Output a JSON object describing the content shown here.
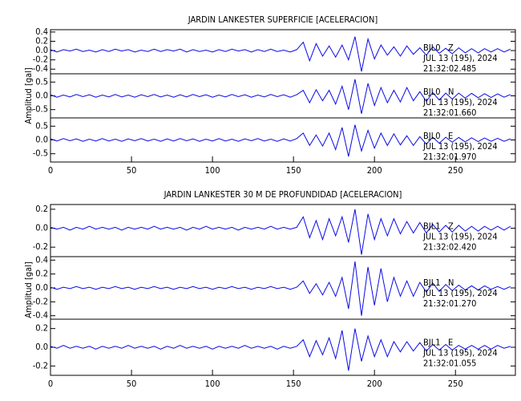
{
  "chart_data": [
    {
      "type": "line",
      "title": "JARDIN LANKESTER SUPERFICIE [ACELERACION]",
      "ylabel": "Amplitud [gal]",
      "xlim": [
        0,
        287
      ],
      "xticks": [
        0,
        50,
        100,
        150,
        200,
        250
      ],
      "x": [
        0,
        4,
        8,
        12,
        16,
        20,
        24,
        28,
        32,
        36,
        40,
        44,
        48,
        52,
        56,
        60,
        64,
        68,
        72,
        76,
        80,
        84,
        88,
        92,
        96,
        100,
        104,
        108,
        112,
        116,
        120,
        124,
        128,
        132,
        136,
        140,
        144,
        148,
        152,
        156,
        160,
        164,
        168,
        172,
        176,
        180,
        184,
        188,
        192,
        196,
        200,
        204,
        208,
        212,
        216,
        220,
        224,
        228,
        232,
        236,
        240,
        244,
        248,
        252,
        256,
        260,
        264,
        268,
        272,
        276,
        280,
        284
      ],
      "series": [
        {
          "name": "BJL0   Z",
          "date": "JUL 13 (195), 2024",
          "time": "21:32:02.485",
          "color": "#0a0ae6",
          "ylim": [
            -0.5,
            0.45
          ],
          "yticks": [
            0.4,
            0.2,
            {
              "value": 0,
              "label": "0.0"
            },
            -0.2,
            -0.4
          ],
          "values": [
            0.02,
            -0.03,
            0.02,
            -0.01,
            0.03,
            -0.02,
            0.01,
            -0.03,
            0.02,
            -0.02,
            0.03,
            -0.01,
            0.02,
            -0.03,
            0.01,
            -0.02,
            0.03,
            -0.02,
            0.02,
            -0.01,
            0.03,
            -0.03,
            0.02,
            -0.02,
            0.01,
            -0.03,
            0.02,
            -0.02,
            0.03,
            -0.01,
            0.02,
            -0.03,
            0.02,
            -0.02,
            0.03,
            -0.02,
            0.01,
            -0.03,
            0.02,
            0.18,
            -0.22,
            0.15,
            -0.12,
            0.1,
            -0.14,
            0.12,
            -0.2,
            0.3,
            -0.45,
            0.25,
            -0.18,
            0.12,
            -0.1,
            0.08,
            -0.12,
            0.1,
            -0.08,
            0.06,
            -0.1,
            0.08,
            -0.06,
            0.05,
            -0.07,
            0.06,
            -0.05,
            0.04,
            -0.05,
            0.04,
            -0.03,
            0.04,
            -0.03,
            0.03
          ]
        },
        {
          "name": "BJL0   N",
          "date": "JUL 13 (195), 2024",
          "time": "21:32:01.660",
          "color": "#0a0ae6",
          "ylim": [
            -0.8,
            0.8
          ],
          "yticks": [
            0.5,
            {
              "value": 0,
              "label": "0.0"
            },
            -0.5
          ],
          "values": [
            0.04,
            -0.05,
            0.03,
            -0.04,
            0.05,
            -0.03,
            0.04,
            -0.05,
            0.03,
            -0.04,
            0.05,
            -0.04,
            0.03,
            -0.05,
            0.04,
            -0.03,
            0.05,
            -0.04,
            0.03,
            -0.05,
            0.04,
            -0.04,
            0.05,
            -0.03,
            0.04,
            -0.05,
            0.03,
            -0.04,
            0.05,
            -0.03,
            0.04,
            -0.05,
            0.03,
            -0.04,
            0.05,
            -0.03,
            0.04,
            -0.05,
            0.04,
            0.2,
            -0.25,
            0.22,
            -0.18,
            0.2,
            -0.3,
            0.35,
            -0.5,
            0.6,
            -0.65,
            0.45,
            -0.35,
            0.3,
            -0.25,
            0.2,
            -0.22,
            0.3,
            -0.18,
            0.15,
            -0.2,
            0.12,
            -0.15,
            0.1,
            -0.12,
            0.1,
            -0.08,
            0.09,
            -0.07,
            0.08,
            -0.06,
            0.07,
            -0.05,
            0.05
          ]
        },
        {
          "name": "BJL0   E",
          "date": "JUL 13 (195), 2024",
          "time": "21:32:01.970",
          "color": "#0a0ae6",
          "ylim": [
            -0.8,
            0.8
          ],
          "yticks": [
            0.5,
            {
              "value": 0,
              "label": "0.0"
            },
            -0.5
          ],
          "values": [
            0.04,
            -0.04,
            0.05,
            -0.03,
            0.04,
            -0.05,
            0.03,
            -0.04,
            0.05,
            -0.04,
            0.03,
            -0.05,
            0.04,
            -0.03,
            0.05,
            -0.04,
            0.03,
            -0.05,
            0.04,
            -0.04,
            0.05,
            -0.03,
            0.04,
            -0.05,
            0.03,
            -0.04,
            0.05,
            -0.04,
            0.03,
            -0.05,
            0.04,
            -0.03,
            0.05,
            -0.04,
            0.03,
            -0.05,
            0.04,
            -0.04,
            0.05,
            0.25,
            -0.2,
            0.18,
            -0.22,
            0.25,
            -0.35,
            0.45,
            -0.6,
            0.55,
            -0.4,
            0.35,
            -0.3,
            0.25,
            -0.2,
            0.22,
            -0.18,
            0.15,
            -0.2,
            0.12,
            -0.15,
            0.1,
            -0.12,
            0.1,
            -0.08,
            0.09,
            -0.07,
            0.08,
            -0.06,
            0.07,
            -0.05,
            0.06,
            -0.05,
            0.04
          ]
        }
      ]
    },
    {
      "type": "line",
      "title": "JARDIN LANKESTER 30 M DE PROFUNDIDAD [ACELERACION]",
      "ylabel": "Amplitud [gal]",
      "xlim": [
        0,
        287
      ],
      "xticks": [
        0,
        50,
        100,
        150,
        200,
        250
      ],
      "x": [
        0,
        4,
        8,
        12,
        16,
        20,
        24,
        28,
        32,
        36,
        40,
        44,
        48,
        52,
        56,
        60,
        64,
        68,
        72,
        76,
        80,
        84,
        88,
        92,
        96,
        100,
        104,
        108,
        112,
        116,
        120,
        124,
        128,
        132,
        136,
        140,
        144,
        148,
        152,
        156,
        160,
        164,
        168,
        172,
        176,
        180,
        184,
        188,
        192,
        196,
        200,
        204,
        208,
        212,
        216,
        220,
        224,
        228,
        232,
        236,
        240,
        244,
        248,
        252,
        256,
        260,
        264,
        268,
        272,
        276,
        280,
        284
      ],
      "series": [
        {
          "name": "BJL1   Z",
          "date": "JUL 13 (195), 2024",
          "time": "21:32:02.420",
          "color": "#0a0ae6",
          "ylim": [
            -0.3,
            0.25
          ],
          "yticks": [
            0.2,
            {
              "value": 0,
              "label": "0.0"
            },
            -0.2
          ],
          "values": [
            0.01,
            -0.01,
            0.01,
            -0.02,
            0.01,
            -0.01,
            0.02,
            -0.01,
            0.01,
            -0.01,
            0.01,
            -0.02,
            0.01,
            -0.01,
            0.01,
            -0.01,
            0.02,
            -0.01,
            0.01,
            -0.01,
            0.01,
            -0.02,
            0.01,
            -0.01,
            0.02,
            -0.01,
            0.01,
            -0.01,
            0.01,
            -0.02,
            0.01,
            -0.01,
            0.01,
            -0.01,
            0.02,
            -0.01,
            0.01,
            -0.01,
            0.01,
            0.12,
            -0.1,
            0.08,
            -0.12,
            0.1,
            -0.08,
            0.12,
            -0.15,
            0.2,
            -0.28,
            0.15,
            -0.12,
            0.1,
            -0.08,
            0.1,
            -0.06,
            0.07,
            -0.05,
            0.06,
            -0.05,
            0.04,
            -0.04,
            0.03,
            -0.04,
            0.03,
            -0.03,
            0.02,
            -0.03,
            0.02,
            -0.02,
            0.02,
            -0.02,
            0.02
          ]
        },
        {
          "name": "BJL1   N",
          "date": "JUL 13 (195), 2024",
          "time": "21:32:01.270",
          "color": "#0a0ae6",
          "ylim": [
            -0.45,
            0.45
          ],
          "yticks": [
            0.4,
            0.2,
            {
              "value": 0,
              "label": "0.0"
            },
            -0.2,
            -0.4
          ],
          "values": [
            0.01,
            -0.02,
            0.01,
            -0.01,
            0.02,
            -0.01,
            0.01,
            -0.02,
            0.01,
            -0.01,
            0.02,
            -0.01,
            0.01,
            -0.02,
            0.01,
            -0.01,
            0.02,
            -0.01,
            0.01,
            -0.02,
            0.01,
            -0.01,
            0.02,
            -0.01,
            0.01,
            -0.02,
            0.01,
            -0.01,
            0.02,
            -0.01,
            0.01,
            -0.02,
            0.01,
            -0.01,
            0.02,
            -0.01,
            0.01,
            -0.02,
            0.01,
            0.1,
            -0.08,
            0.06,
            -0.1,
            0.08,
            -0.12,
            0.15,
            -0.3,
            0.38,
            -0.4,
            0.3,
            -0.25,
            0.28,
            -0.2,
            0.15,
            -0.12,
            0.1,
            -0.12,
            0.08,
            -0.06,
            0.07,
            -0.05,
            0.05,
            -0.04,
            0.04,
            -0.03,
            0.03,
            -0.03,
            0.03,
            -0.02,
            0.02,
            -0.02,
            0.02
          ]
        },
        {
          "name": "BJL1   E",
          "date": "JUL 13 (195), 2024",
          "time": "21:32:01.055",
          "color": "#0a0ae6",
          "ylim": [
            -0.3,
            0.3
          ],
          "yticks": [
            0.2,
            {
              "value": 0,
              "label": "0.0"
            },
            -0.2
          ],
          "values": [
            0.01,
            -0.01,
            0.02,
            -0.01,
            0.01,
            -0.01,
            0.01,
            -0.02,
            0.01,
            -0.01,
            0.01,
            -0.01,
            0.02,
            -0.01,
            0.01,
            -0.01,
            0.01,
            -0.02,
            0.01,
            -0.01,
            0.02,
            -0.01,
            0.01,
            -0.01,
            0.01,
            -0.02,
            0.01,
            -0.01,
            0.01,
            -0.01,
            0.02,
            -0.01,
            0.01,
            -0.01,
            0.01,
            -0.02,
            0.01,
            -0.01,
            0.01,
            0.08,
            -0.1,
            0.07,
            -0.08,
            0.1,
            -0.12,
            0.18,
            -0.25,
            0.2,
            -0.15,
            0.12,
            -0.1,
            0.08,
            -0.1,
            0.06,
            -0.05,
            0.06,
            -0.04,
            0.05,
            -0.04,
            0.03,
            -0.03,
            0.03,
            -0.03,
            0.02,
            -0.02,
            0.02,
            -0.02,
            0.02,
            -0.02,
            0.02,
            -0.01,
            0.01
          ]
        }
      ]
    }
  ]
}
